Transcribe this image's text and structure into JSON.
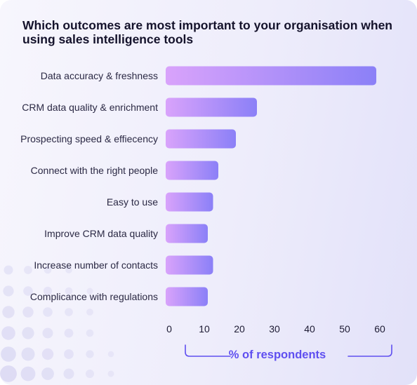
{
  "title": "Which outcomes are most important to your organisation when using sales intelligence tools",
  "chart_data": {
    "type": "bar",
    "orientation": "horizontal",
    "categories": [
      "Data accuracy & freshness",
      "CRM data quality & enrichment",
      "Prospecting speed & effiecency",
      "Connect with the right people",
      "Easy to use",
      "Improve CRM data quality",
      "Increase number of contacts",
      "Complicance with regulations"
    ],
    "values": [
      60,
      26,
      20,
      15,
      13.5,
      12,
      13.5,
      12
    ],
    "xlabel": "% of respondents",
    "ylabel": "",
    "xlim": [
      0,
      60
    ],
    "xticks": [
      0,
      10,
      20,
      30,
      40,
      50,
      60
    ],
    "grid": false,
    "legend": "none"
  },
  "colors": {
    "bar_start": "#d9a3fb",
    "bar_end": "#8b80f7",
    "accent": "#5f4ff0",
    "title": "#14122b"
  }
}
